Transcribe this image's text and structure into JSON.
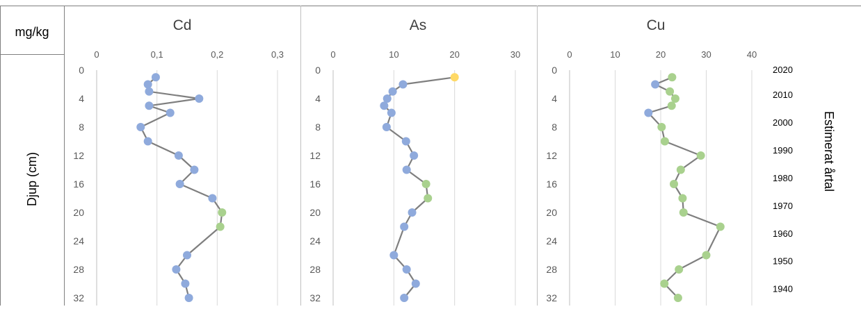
{
  "table": {
    "unit_header": "mg/kg",
    "row_label": "Djup (cm)",
    "right_label": "Estimerat årtal"
  },
  "years": [
    "2020",
    "2010",
    "2000",
    "1990",
    "1980",
    "1970",
    "1960",
    "1950",
    "1940"
  ],
  "colors": {
    "blue": "#8faadc",
    "green": "#a9d18e",
    "yellow": "#ffd966",
    "line": "#7f7f7f",
    "grid": "#d9d9d9",
    "border": "#7f7f7f"
  },
  "chart_data": [
    {
      "type": "line",
      "title": "Cd",
      "xlim": [
        0,
        0.3
      ],
      "xticks": [
        "0",
        "0,1",
        "0,2",
        "0,3"
      ],
      "ylim": [
        0,
        32
      ],
      "yticks": [
        "0",
        "4",
        "8",
        "12",
        "16",
        "20",
        "24",
        "28",
        "32"
      ],
      "y_inverted": true,
      "grid": "vertical",
      "points": [
        {
          "depth": 1,
          "value": 0.098,
          "color": "blue"
        },
        {
          "depth": 2,
          "value": 0.085,
          "color": "blue"
        },
        {
          "depth": 3,
          "value": 0.087,
          "color": "blue"
        },
        {
          "depth": 4,
          "value": 0.17,
          "color": "blue"
        },
        {
          "depth": 5,
          "value": 0.087,
          "color": "blue"
        },
        {
          "depth": 6,
          "value": 0.122,
          "color": "blue"
        },
        {
          "depth": 8,
          "value": 0.073,
          "color": "blue"
        },
        {
          "depth": 10,
          "value": 0.085,
          "color": "blue"
        },
        {
          "depth": 12,
          "value": 0.136,
          "color": "blue"
        },
        {
          "depth": 14,
          "value": 0.162,
          "color": "blue"
        },
        {
          "depth": 16,
          "value": 0.138,
          "color": "blue"
        },
        {
          "depth": 18,
          "value": 0.192,
          "color": "blue"
        },
        {
          "depth": 20,
          "value": 0.208,
          "color": "green"
        },
        {
          "depth": 22,
          "value": 0.205,
          "color": "green"
        },
        {
          "depth": 26,
          "value": 0.15,
          "color": "blue"
        },
        {
          "depth": 28,
          "value": 0.132,
          "color": "blue"
        },
        {
          "depth": 30,
          "value": 0.147,
          "color": "blue"
        },
        {
          "depth": 32,
          "value": 0.153,
          "color": "blue"
        }
      ]
    },
    {
      "type": "line",
      "title": "As",
      "xlim": [
        0,
        30
      ],
      "xticks": [
        "0",
        "10",
        "20",
        "30"
      ],
      "ylim": [
        0,
        32
      ],
      "yticks": [
        "0",
        "4",
        "8",
        "12",
        "16",
        "20",
        "24",
        "28",
        "32"
      ],
      "y_inverted": true,
      "grid": "vertical",
      "points": [
        {
          "depth": 1,
          "value": 20,
          "color": "yellow"
        },
        {
          "depth": 2,
          "value": 11.5,
          "color": "blue"
        },
        {
          "depth": 3,
          "value": 9.8,
          "color": "blue"
        },
        {
          "depth": 4,
          "value": 8.9,
          "color": "blue"
        },
        {
          "depth": 5,
          "value": 8.4,
          "color": "blue"
        },
        {
          "depth": 6,
          "value": 9.6,
          "color": "blue"
        },
        {
          "depth": 8,
          "value": 8.8,
          "color": "blue"
        },
        {
          "depth": 10,
          "value": 12,
          "color": "blue"
        },
        {
          "depth": 12,
          "value": 13.3,
          "color": "blue"
        },
        {
          "depth": 14,
          "value": 12.1,
          "color": "blue"
        },
        {
          "depth": 16,
          "value": 15.3,
          "color": "green"
        },
        {
          "depth": 18,
          "value": 15.6,
          "color": "green"
        },
        {
          "depth": 20,
          "value": 13,
          "color": "blue"
        },
        {
          "depth": 22,
          "value": 11.7,
          "color": "blue"
        },
        {
          "depth": 26,
          "value": 10,
          "color": "blue"
        },
        {
          "depth": 28,
          "value": 12.1,
          "color": "blue"
        },
        {
          "depth": 30,
          "value": 13.6,
          "color": "blue"
        },
        {
          "depth": 32,
          "value": 11.7,
          "color": "blue"
        }
      ]
    },
    {
      "type": "line",
      "title": "Cu",
      "xlim": [
        0,
        40
      ],
      "xticks": [
        "0",
        "10",
        "20",
        "30",
        "40"
      ],
      "ylim": [
        0,
        32
      ],
      "yticks": [
        "0",
        "4",
        "8",
        "12",
        "16",
        "20",
        "24",
        "28",
        "32"
      ],
      "y_inverted": true,
      "grid": "vertical",
      "points": [
        {
          "depth": 1,
          "value": 22.5,
          "color": "green"
        },
        {
          "depth": 2,
          "value": 18.8,
          "color": "blue"
        },
        {
          "depth": 3,
          "value": 22,
          "color": "green"
        },
        {
          "depth": 4,
          "value": 23.2,
          "color": "green"
        },
        {
          "depth": 5,
          "value": 22.4,
          "color": "green"
        },
        {
          "depth": 6,
          "value": 17.3,
          "color": "blue"
        },
        {
          "depth": 8,
          "value": 20.2,
          "color": "green"
        },
        {
          "depth": 10,
          "value": 20.9,
          "color": "green"
        },
        {
          "depth": 12,
          "value": 28.8,
          "color": "green"
        },
        {
          "depth": 14,
          "value": 24.4,
          "color": "green"
        },
        {
          "depth": 16,
          "value": 22.9,
          "color": "green"
        },
        {
          "depth": 18,
          "value": 24.8,
          "color": "green"
        },
        {
          "depth": 20,
          "value": 25,
          "color": "green"
        },
        {
          "depth": 22,
          "value": 33.1,
          "color": "green"
        },
        {
          "depth": 26,
          "value": 30,
          "color": "green"
        },
        {
          "depth": 28,
          "value": 24,
          "color": "green"
        },
        {
          "depth": 30,
          "value": 20.8,
          "color": "green"
        },
        {
          "depth": 32,
          "value": 23.8,
          "color": "green"
        }
      ]
    }
  ]
}
